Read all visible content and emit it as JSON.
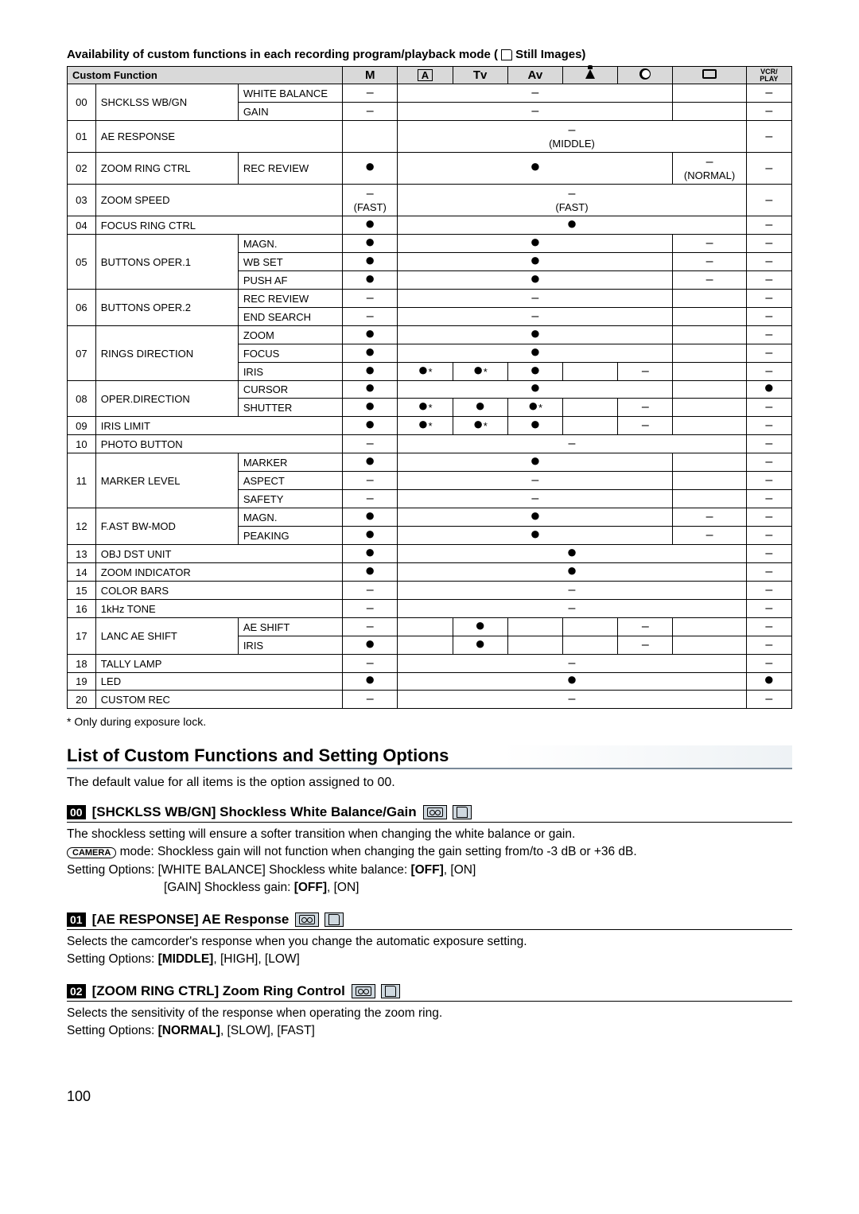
{
  "tableTitle": {
    "prefix": "Availability of custom functions in each recording program/playback mode (",
    "suffix": " Still Images)"
  },
  "headers": {
    "cf": "Custom Function",
    "m": "M",
    "a": "A",
    "tv": "Tv",
    "av": "Av",
    "vcr": "VCR/\nPLAY"
  },
  "symbols": {
    "dot": "●",
    "dash": "–",
    "dotstar": "●*"
  },
  "tableNotes": {
    "middle": "(MIDDLE)",
    "normal": "(NORMAL)",
    "fast": "(FAST)"
  },
  "rows": [
    {
      "num": "00",
      "name": "SHCKLSS WB/GN",
      "sub": "WHITE BALANCE",
      "m": "–",
      "wide": "–",
      "rect": "",
      "vcr": "–"
    },
    {
      "num": "",
      "name": "",
      "sub": "GAIN",
      "m": "–",
      "wide": "–",
      "rect": "",
      "vcr": "–"
    },
    {
      "num": "01",
      "name": "AE RESPONSE",
      "sub": "",
      "m": "",
      "wide": "–\n(MIDDLE)",
      "rect": "",
      "vcr": "–",
      "tall": true,
      "spanWide": true
    },
    {
      "num": "02",
      "name": "ZOOM RING CTRL",
      "sub": "REC REVIEW",
      "m": "●",
      "wide": "●",
      "rect": "–\n(NORMAL)",
      "vcr": "–",
      "tall": true
    },
    {
      "num": "03",
      "name": "ZOOM SPEED",
      "sub": "",
      "m": "–\n(FAST)",
      "wide": "–\n(FAST)",
      "rect": "",
      "vcr": "–",
      "tall": true,
      "spanWide": true
    },
    {
      "num": "04",
      "name": "FOCUS RING CTRL",
      "sub": "",
      "m": "●",
      "wide": "●",
      "rect": "",
      "vcr": "–",
      "spanWide": true
    },
    {
      "num": "05",
      "name": "BUTTONS OPER.1",
      "sub": "MAGN.",
      "m": "●",
      "wide": "●",
      "rect": "–",
      "vcr": "–"
    },
    {
      "num": "",
      "name": "",
      "sub": "WB SET",
      "m": "●",
      "wide": "●",
      "rect": "–",
      "vcr": "–"
    },
    {
      "num": "",
      "name": "",
      "sub": "PUSH AF",
      "m": "●",
      "wide": "●",
      "rect": "–",
      "vcr": "–"
    },
    {
      "num": "06",
      "name": "BUTTONS OPER.2",
      "sub": "REC REVIEW",
      "m": "–",
      "wide": "–",
      "rect": "",
      "vcr": "–"
    },
    {
      "num": "",
      "name": "",
      "sub": "END SEARCH",
      "m": "–",
      "wide": "–",
      "rect": "",
      "vcr": "–"
    },
    {
      "num": "07",
      "name": "RINGS DIRECTION",
      "sub": "ZOOM",
      "m": "●",
      "wide": "●",
      "rect": "",
      "vcr": "–"
    },
    {
      "num": "",
      "name": "",
      "sub": "FOCUS",
      "m": "●",
      "wide": "●",
      "rect": "",
      "vcr": "–"
    },
    {
      "num": "",
      "name": "",
      "sub": "IRIS",
      "m": "●",
      "a": "●*",
      "tv": "●*",
      "av": "●",
      "spot": "",
      "night": "–",
      "rect": "",
      "vcr": "–",
      "split": true
    },
    {
      "num": "08",
      "name": "OPER.DIRECTION",
      "sub": "CURSOR",
      "m": "●",
      "wide": "●",
      "rect": "",
      "vcr": "●"
    },
    {
      "num": "",
      "name": "",
      "sub": "SHUTTER",
      "m": "●",
      "a": "●*",
      "tv": "●",
      "av": "●*",
      "spot": "",
      "night": "–",
      "rect": "",
      "vcr": "–",
      "split": true
    },
    {
      "num": "09",
      "name": "IRIS LIMIT",
      "sub": "",
      "m": "●",
      "a": "●*",
      "tv": "●*",
      "av": "●",
      "spot": "",
      "night": "–",
      "rect": "",
      "vcr": "–",
      "split": true
    },
    {
      "num": "10",
      "name": "PHOTO BUTTON",
      "sub": "",
      "m": "–",
      "wide": "–",
      "rect": "",
      "vcr": "–",
      "spanWide": true
    },
    {
      "num": "11",
      "name": "MARKER LEVEL",
      "sub": "MARKER",
      "m": "●",
      "wide": "●",
      "rect": "",
      "vcr": "–"
    },
    {
      "num": "",
      "name": "",
      "sub": "ASPECT",
      "m": "–",
      "wide": "–",
      "rect": "",
      "vcr": "–"
    },
    {
      "num": "",
      "name": "",
      "sub": "SAFETY",
      "m": "–",
      "wide": "–",
      "rect": "",
      "vcr": "–"
    },
    {
      "num": "12",
      "name": "F.AST BW-MOD",
      "sub": "MAGN.",
      "m": "●",
      "wide": "●",
      "rect": "–",
      "vcr": "–"
    },
    {
      "num": "",
      "name": "",
      "sub": "PEAKING",
      "m": "●",
      "wide": "●",
      "rect": "–",
      "vcr": "–"
    },
    {
      "num": "13",
      "name": "OBJ DST UNIT",
      "sub": "",
      "m": "●",
      "wide": "●",
      "rect": "",
      "vcr": "–",
      "spanWide": true
    },
    {
      "num": "14",
      "name": "ZOOM INDICATOR",
      "sub": "",
      "m": "●",
      "wide": "●",
      "rect": "",
      "vcr": "–",
      "spanWide": true
    },
    {
      "num": "15",
      "name": "COLOR BARS",
      "sub": "",
      "m": "–",
      "wide": "–",
      "rect": "",
      "vcr": "–",
      "spanWide": true
    },
    {
      "num": "16",
      "name": "1kHz TONE",
      "sub": "",
      "m": "–",
      "wide": "–",
      "rect": "",
      "vcr": "–",
      "spanWide": true
    },
    {
      "num": "17",
      "name": "LANC AE SHIFT",
      "sub": "AE SHIFT",
      "m": "–",
      "a": "",
      "tv": "●",
      "av": "",
      "spot": "",
      "night": "–",
      "rect": "",
      "vcr": "–",
      "split": true
    },
    {
      "num": "",
      "name": "",
      "sub": "IRIS",
      "m": "●",
      "a": "",
      "tv": "●",
      "av": "",
      "spot": "",
      "night": "–",
      "rect": "",
      "vcr": "–",
      "split": true
    },
    {
      "num": "18",
      "name": "TALLY LAMP",
      "sub": "",
      "m": "–",
      "wide": "–",
      "rect": "",
      "vcr": "–",
      "spanWide": true
    },
    {
      "num": "19",
      "name": "LED",
      "sub": "",
      "m": "●",
      "wide": "●",
      "rect": "",
      "vcr": "●",
      "spanWide": true
    },
    {
      "num": "20",
      "name": "CUSTOM REC",
      "sub": "",
      "m": "–",
      "wide": "–",
      "rect": "",
      "vcr": "–",
      "spanWide": true
    }
  ],
  "footnote": "*  Only during exposure lock.",
  "sectionTitle": "List of Custom Functions and Setting Options",
  "defaultText": "The default value for all items is the option assigned to 00.",
  "fn00": {
    "num": "00",
    "title": "[SHCKLSS WB/GN] Shockless White Balance/Gain",
    "line1": "The shockless setting will ensure a softer transition when changing the white balance or gain.",
    "line2a": " mode: Shockless gain will not function when changing the gain setting from/to -3 dB or +36 dB.",
    "line3": "Setting Options: [WHITE BALANCE] Shockless white balance: ",
    "line3b": ", [ON]",
    "off": "[OFF]",
    "line4a": "[GAIN] Shockless gain: ",
    "line4b": ", [ON]",
    "camera": "CAMERA"
  },
  "fn01": {
    "num": "01",
    "title": "[AE RESPONSE] AE Response",
    "line1": "Selects the camcorder's response when you change the automatic exposure setting.",
    "line2a": "Setting Options: ",
    "middle": "[MIDDLE]",
    "line2b": ", [HIGH], [LOW]"
  },
  "fn02": {
    "num": "02",
    "title": "[ZOOM RING CTRL] Zoom Ring Control",
    "line1": "Selects the sensitivity of the response when operating the zoom ring.",
    "line2a": "Setting Options: ",
    "normal": "[NORMAL]",
    "line2b": ", [SLOW], [FAST]"
  },
  "pageNum": "100"
}
